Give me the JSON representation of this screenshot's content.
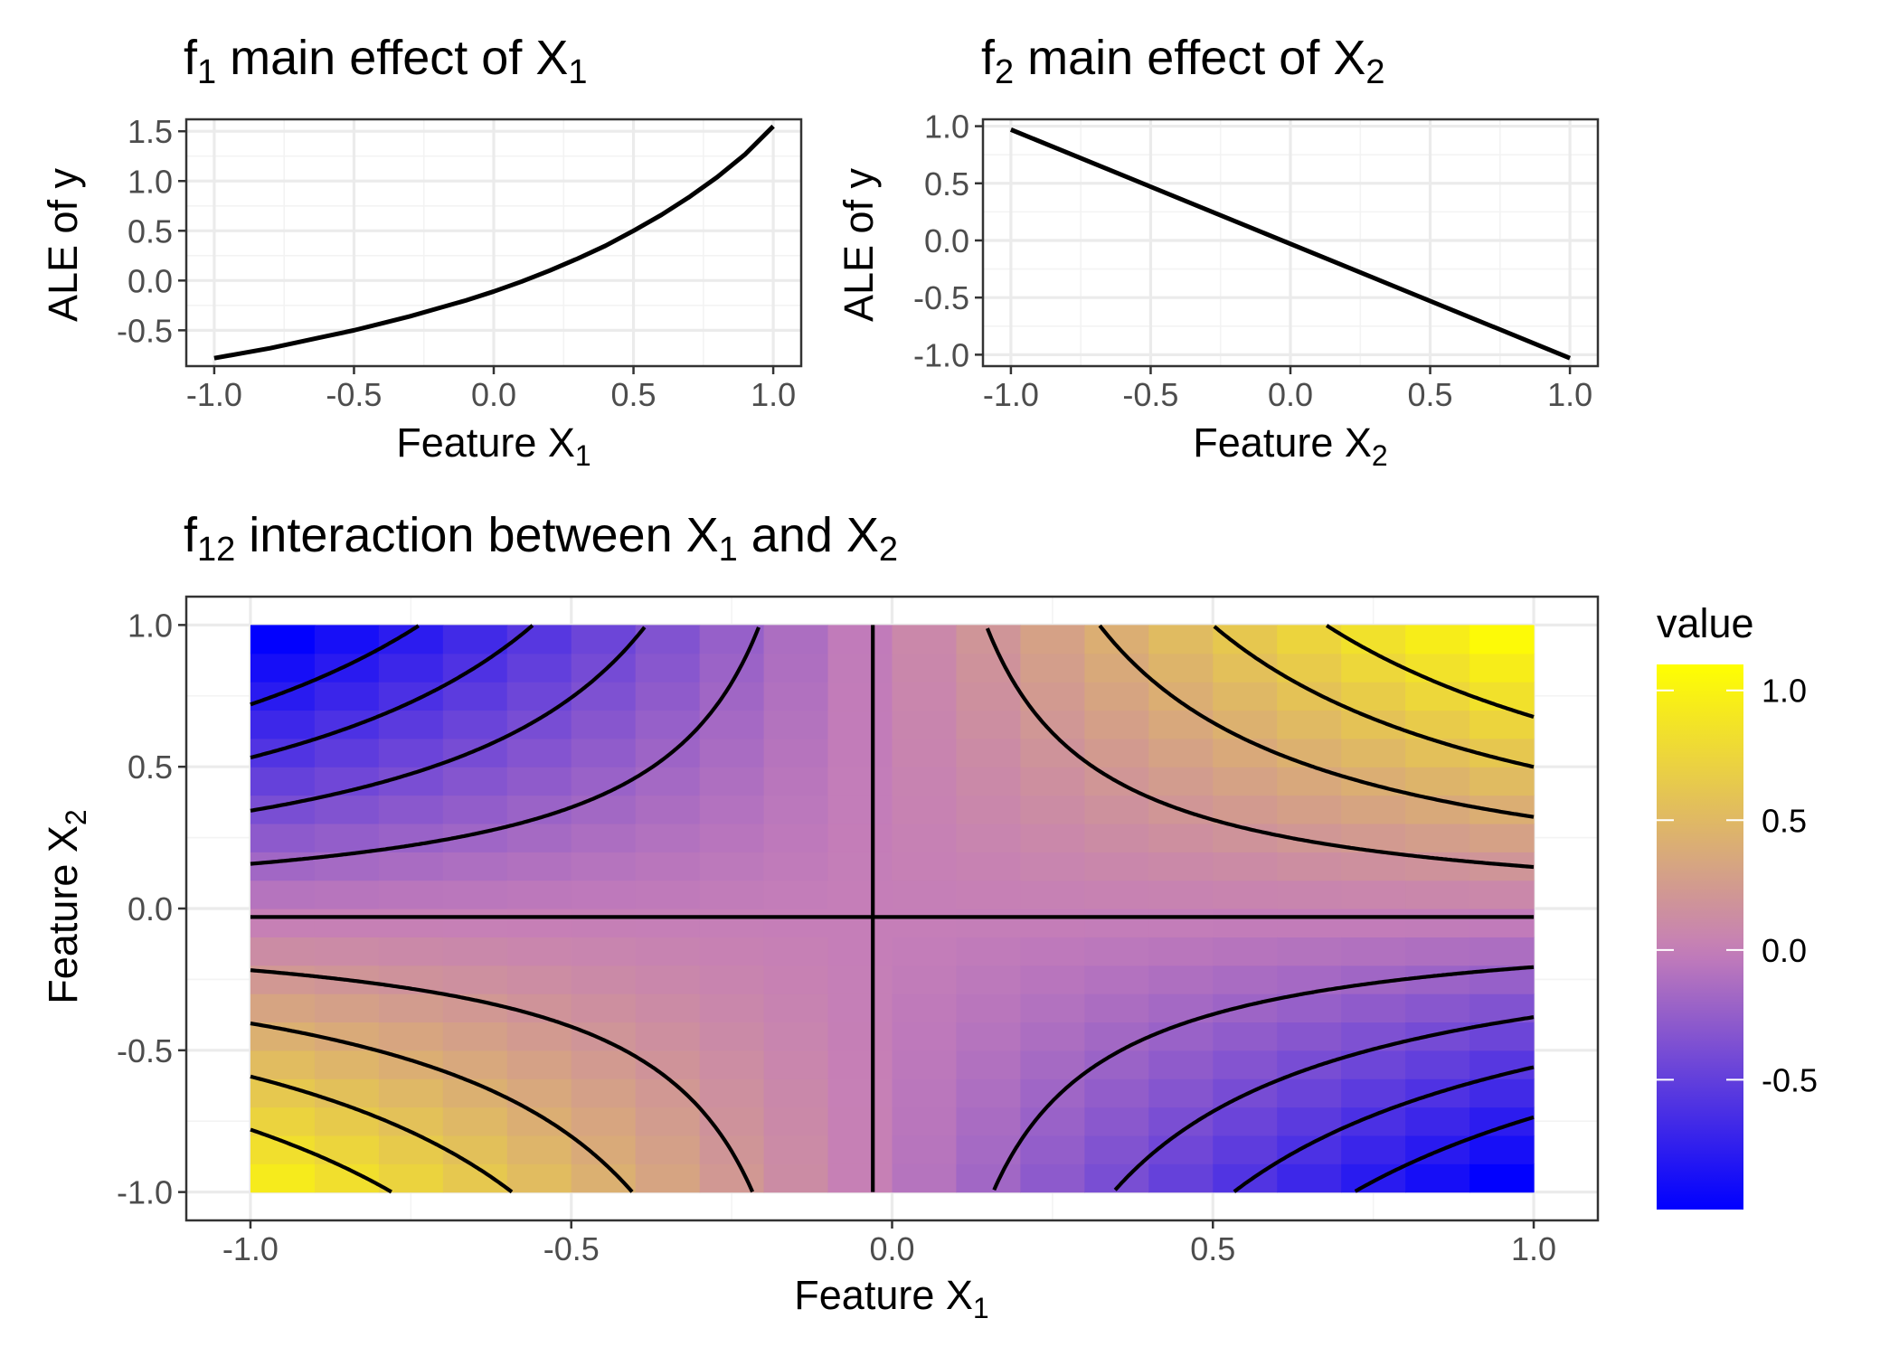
{
  "chart_data": [
    {
      "type": "line",
      "title": "f",
      "title_sub": "1",
      "title_rest": " main effect of X",
      "title_sub2": "1",
      "xlabel": "Feature X",
      "xlabel_sub": "1",
      "ylabel": "ALE of y",
      "xlim": [
        -1.1,
        1.1
      ],
      "ylim": [
        -0.86,
        1.62
      ],
      "xticks": [
        -1.0,
        -0.5,
        0.0,
        0.5,
        1.0
      ],
      "xtick_labels": [
        "-1.0",
        "-0.5",
        "0.0",
        "0.5",
        "1.0"
      ],
      "yticks": [
        -0.5,
        0.0,
        0.5,
        1.0,
        1.5
      ],
      "ytick_labels": [
        "-0.5",
        "0.0",
        "0.5",
        "1.0",
        "1.5"
      ],
      "grid": true,
      "x": [
        -1.0,
        -0.9,
        -0.8,
        -0.7,
        -0.6,
        -0.5,
        -0.4,
        -0.3,
        -0.2,
        -0.1,
        0.0,
        0.1,
        0.2,
        0.3,
        0.4,
        0.5,
        0.6,
        0.7,
        0.8,
        0.9,
        1.0
      ],
      "y": [
        -0.78,
        -0.73,
        -0.68,
        -0.62,
        -0.56,
        -0.5,
        -0.43,
        -0.36,
        -0.28,
        -0.2,
        -0.11,
        -0.01,
        0.1,
        0.22,
        0.35,
        0.5,
        0.66,
        0.84,
        1.04,
        1.27,
        1.55
      ]
    },
    {
      "type": "line",
      "title": "f",
      "title_sub": "2",
      "title_rest": " main effect of X",
      "title_sub2": "2",
      "xlabel": "Feature X",
      "xlabel_sub": "2",
      "ylabel": "ALE of y",
      "xlim": [
        -1.1,
        1.1
      ],
      "ylim": [
        -1.1,
        1.06
      ],
      "xticks": [
        -1.0,
        -0.5,
        0.0,
        0.5,
        1.0
      ],
      "xtick_labels": [
        "-1.0",
        "-0.5",
        "0.0",
        "0.5",
        "1.0"
      ],
      "yticks": [
        -1.0,
        -0.5,
        0.0,
        0.5,
        1.0
      ],
      "ytick_labels": [
        "-1.0",
        "-0.5",
        "0.0",
        "0.5",
        "1.0"
      ],
      "grid": true,
      "x": [
        -1.0,
        1.0
      ],
      "y": [
        0.97,
        -1.03
      ]
    },
    {
      "type": "heatmap",
      "title": "f",
      "title_sub": "12",
      "title_rest": " interaction between X",
      "title_sub2": "1",
      "title_mid": " and X",
      "title_sub3": "2",
      "xlabel": "Feature X",
      "xlabel_sub": "1",
      "ylabel": "Feature X",
      "ylabel_sub": "2",
      "xlim": [
        -1.1,
        1.1
      ],
      "ylim": [
        -1.1,
        1.1
      ],
      "xticks": [
        -1.0,
        -0.5,
        0.0,
        0.5,
        1.0
      ],
      "xtick_labels": [
        "-1.0",
        "-0.5",
        "0.0",
        "0.5",
        "1.0"
      ],
      "yticks": [
        -1.0,
        -0.5,
        0.0,
        0.5,
        1.0
      ],
      "ytick_labels": [
        "-1.0",
        "-0.5",
        "0.0",
        "0.5",
        "1.0"
      ],
      "grid": true,
      "grid_range": [
        -1.0,
        1.0
      ],
      "grid_cells": 20,
      "formula": "value = 1.1 * (x1 + 0.03) * (x2 + 0.03)",
      "color_scale": {
        "low": "#0000FF",
        "mid": "#C57EB8",
        "high": "#FFFF00",
        "min": -1.0,
        "max": 1.1
      },
      "contour_levels": [
        -0.8,
        -0.6,
        -0.4,
        -0.2,
        0.0,
        0.2,
        0.4,
        0.6,
        0.8
      ],
      "legend": {
        "title": "value",
        "position": "right",
        "breaks": [
          1.0,
          0.5,
          0.0,
          -0.5
        ],
        "labels": [
          "1.0",
          "0.5",
          "0.0",
          "-0.5"
        ]
      }
    }
  ]
}
